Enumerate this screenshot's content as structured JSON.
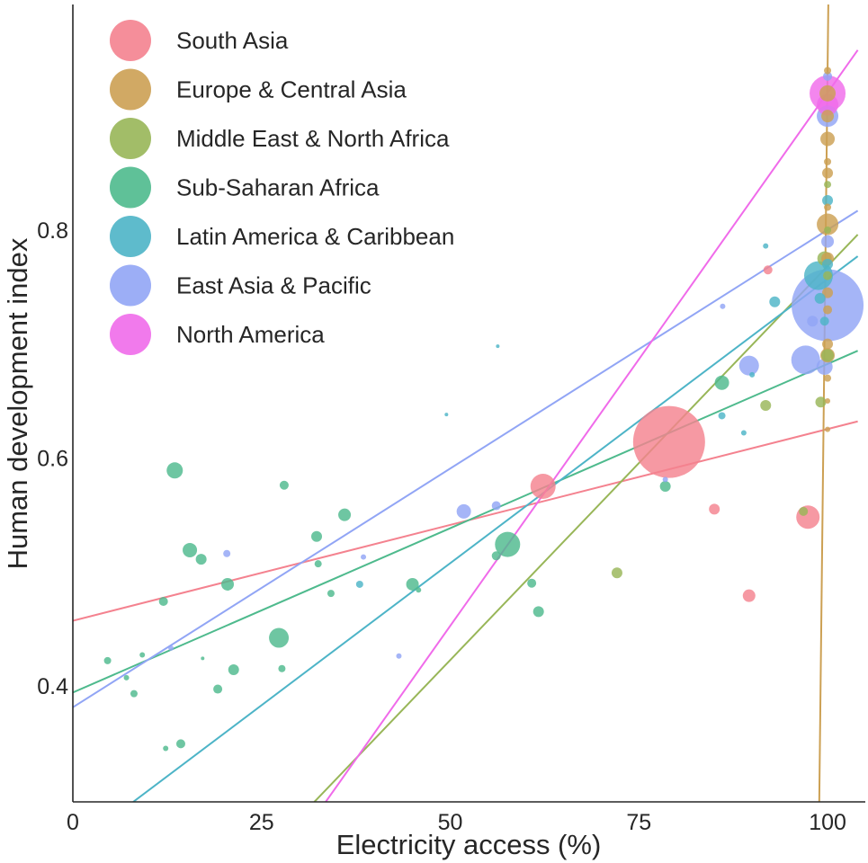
{
  "chart_data": {
    "type": "scatter",
    "title": "",
    "xlabel": "Electricity access (%)",
    "ylabel": "Human development index",
    "xlim": [
      0,
      105
    ],
    "ylim": [
      0.298,
      0.998
    ],
    "xticks": [
      0,
      25,
      50,
      75,
      100
    ],
    "yticks": [
      0.4,
      0.6,
      0.8
    ],
    "grid": false,
    "legend_position": "top-left",
    "bubble_size_legend": "relative population",
    "series": [
      {
        "name": "South Asia",
        "color": "#f4828f",
        "points": [
          {
            "x": 79,
            "y": 0.614,
            "size": 40
          },
          {
            "x": 62.3,
            "y": 0.575,
            "size": 14
          },
          {
            "x": 97.4,
            "y": 0.548,
            "size": 13
          },
          {
            "x": 85,
            "y": 0.555,
            "size": 6
          },
          {
            "x": 89.6,
            "y": 0.479,
            "size": 7
          },
          {
            "x": 92.1,
            "y": 0.765,
            "size": 5
          }
        ],
        "trend": {
          "x": [
            0,
            104
          ],
          "y": [
            0.457,
            0.632
          ]
        }
      },
      {
        "name": "Europe & Central Asia",
        "color": "#cca053",
        "points": [
          {
            "x": 100,
            "y": 0.805,
            "size": 12
          },
          {
            "x": 100,
            "y": 0.88,
            "size": 8
          },
          {
            "x": 100,
            "y": 0.9,
            "size": 7
          },
          {
            "x": 100,
            "y": 0.85,
            "size": 6
          },
          {
            "x": 100,
            "y": 0.92,
            "size": 9
          },
          {
            "x": 100,
            "y": 0.775,
            "size": 7
          },
          {
            "x": 100,
            "y": 0.745,
            "size": 6
          },
          {
            "x": 100,
            "y": 0.7,
            "size": 6
          },
          {
            "x": 100,
            "y": 0.69,
            "size": 8
          },
          {
            "x": 100,
            "y": 0.94,
            "size": 4
          },
          {
            "x": 100,
            "y": 0.86,
            "size": 4
          },
          {
            "x": 100,
            "y": 0.82,
            "size": 4
          },
          {
            "x": 100,
            "y": 0.73,
            "size": 5
          },
          {
            "x": 100,
            "y": 0.67,
            "size": 4
          },
          {
            "x": 100,
            "y": 0.65,
            "size": 3
          },
          {
            "x": 100,
            "y": 0.625,
            "size": 3
          }
        ],
        "trend": {
          "x": [
            98.9,
            100.1
          ],
          "y": [
            0.298,
            0.998
          ]
        }
      },
      {
        "name": "Middle East & North Africa",
        "color": "#98b658",
        "points": [
          {
            "x": 99.6,
            "y": 0.775,
            "size": 8
          },
          {
            "x": 100,
            "y": 0.69,
            "size": 7
          },
          {
            "x": 99.1,
            "y": 0.649,
            "size": 6
          },
          {
            "x": 91.8,
            "y": 0.646,
            "size": 6
          },
          {
            "x": 96.8,
            "y": 0.553,
            "size": 5
          },
          {
            "x": 72.1,
            "y": 0.499,
            "size": 6
          },
          {
            "x": 100,
            "y": 0.8,
            "size": 4
          },
          {
            "x": 100,
            "y": 0.84,
            "size": 4
          },
          {
            "x": 100,
            "y": 0.76,
            "size": 5
          }
        ],
        "trend": {
          "x": [
            32,
            104
          ],
          "y": [
            0.298,
            0.796
          ]
        }
      },
      {
        "name": "Sub-Saharan Africa",
        "color": "#4eba8d",
        "points": [
          {
            "x": 13.5,
            "y": 0.589,
            "size": 9
          },
          {
            "x": 57.6,
            "y": 0.524,
            "size": 14
          },
          {
            "x": 27.3,
            "y": 0.442,
            "size": 11
          },
          {
            "x": 86,
            "y": 0.666,
            "size": 8
          },
          {
            "x": 15.5,
            "y": 0.519,
            "size": 8
          },
          {
            "x": 36,
            "y": 0.55,
            "size": 7
          },
          {
            "x": 20.5,
            "y": 0.489,
            "size": 7
          },
          {
            "x": 45,
            "y": 0.489,
            "size": 7
          },
          {
            "x": 21.3,
            "y": 0.414,
            "size": 6
          },
          {
            "x": 32.3,
            "y": 0.531,
            "size": 6
          },
          {
            "x": 17,
            "y": 0.511,
            "size": 6
          },
          {
            "x": 61.7,
            "y": 0.465,
            "size": 6
          },
          {
            "x": 78.5,
            "y": 0.575,
            "size": 6
          },
          {
            "x": 19.2,
            "y": 0.397,
            "size": 5
          },
          {
            "x": 14.3,
            "y": 0.349,
            "size": 5
          },
          {
            "x": 12,
            "y": 0.474,
            "size": 5
          },
          {
            "x": 28,
            "y": 0.576,
            "size": 5
          },
          {
            "x": 4.6,
            "y": 0.422,
            "size": 4
          },
          {
            "x": 8.1,
            "y": 0.393,
            "size": 4
          },
          {
            "x": 32.5,
            "y": 0.507,
            "size": 4
          },
          {
            "x": 34.2,
            "y": 0.481,
            "size": 4
          },
          {
            "x": 27.7,
            "y": 0.415,
            "size": 4
          },
          {
            "x": 56.1,
            "y": 0.514,
            "size": 5
          },
          {
            "x": 60.8,
            "y": 0.49,
            "size": 5
          },
          {
            "x": 9.2,
            "y": 0.427,
            "size": 3
          },
          {
            "x": 12.3,
            "y": 0.345,
            "size": 3
          },
          {
            "x": 17.2,
            "y": 0.424,
            "size": 2
          },
          {
            "x": 7.1,
            "y": 0.407,
            "size": 3
          },
          {
            "x": 45.8,
            "y": 0.484,
            "size": 3
          }
        ],
        "trend": {
          "x": [
            0,
            104
          ],
          "y": [
            0.394,
            0.694
          ]
        }
      },
      {
        "name": "Latin America & Caribbean",
        "color": "#4db4c7",
        "points": [
          {
            "x": 98.8,
            "y": 0.76,
            "size": 16
          },
          {
            "x": 93,
            "y": 0.737,
            "size": 6
          },
          {
            "x": 100,
            "y": 0.826,
            "size": 6
          },
          {
            "x": 86,
            "y": 0.637,
            "size": 4
          },
          {
            "x": 88.9,
            "y": 0.622,
            "size": 3
          },
          {
            "x": 91.8,
            "y": 0.786,
            "size": 3
          },
          {
            "x": 100,
            "y": 0.77,
            "size": 6
          },
          {
            "x": 99,
            "y": 0.74,
            "size": 6
          },
          {
            "x": 99.6,
            "y": 0.72,
            "size": 5
          },
          {
            "x": 90,
            "y": 0.673,
            "size": 3
          },
          {
            "x": 38,
            "y": 0.489,
            "size": 4
          },
          {
            "x": 56.3,
            "y": 0.698,
            "size": 2
          },
          {
            "x": 49.5,
            "y": 0.638,
            "size": 2
          }
        ],
        "trend": {
          "x": [
            8,
            104
          ],
          "y": [
            0.298,
            0.777
          ]
        }
      },
      {
        "name": "East Asia & Pacific",
        "color": "#91a5f5",
        "points": [
          {
            "x": 100,
            "y": 0.734,
            "size": 40
          },
          {
            "x": 97.1,
            "y": 0.686,
            "size": 16
          },
          {
            "x": 100,
            "y": 0.9,
            "size": 12
          },
          {
            "x": 89.6,
            "y": 0.681,
            "size": 11
          },
          {
            "x": 51.8,
            "y": 0.553,
            "size": 8
          },
          {
            "x": 99.6,
            "y": 0.68,
            "size": 9
          },
          {
            "x": 100,
            "y": 0.79,
            "size": 7
          },
          {
            "x": 100,
            "y": 0.935,
            "size": 5
          },
          {
            "x": 56.1,
            "y": 0.558,
            "size": 5
          },
          {
            "x": 20.4,
            "y": 0.516,
            "size": 4
          },
          {
            "x": 98,
            "y": 0.72,
            "size": 6
          },
          {
            "x": 86.1,
            "y": 0.733,
            "size": 3
          },
          {
            "x": 78.5,
            "y": 0.581,
            "size": 3
          },
          {
            "x": 38.5,
            "y": 0.513,
            "size": 3
          },
          {
            "x": 43.2,
            "y": 0.426,
            "size": 3
          },
          {
            "x": 13,
            "y": 0.433,
            "size": 3
          }
        ],
        "trend": {
          "x": [
            0,
            104
          ],
          "y": [
            0.381,
            0.817
          ]
        }
      },
      {
        "name": "North America",
        "color": "#f06bea",
        "points": [
          {
            "x": 100,
            "y": 0.92,
            "size": 20
          },
          {
            "x": 100,
            "y": 0.91,
            "size": 12
          }
        ],
        "trend": {
          "x": [
            33.5,
            104
          ],
          "y": [
            0.298,
            0.958
          ]
        }
      }
    ]
  }
}
